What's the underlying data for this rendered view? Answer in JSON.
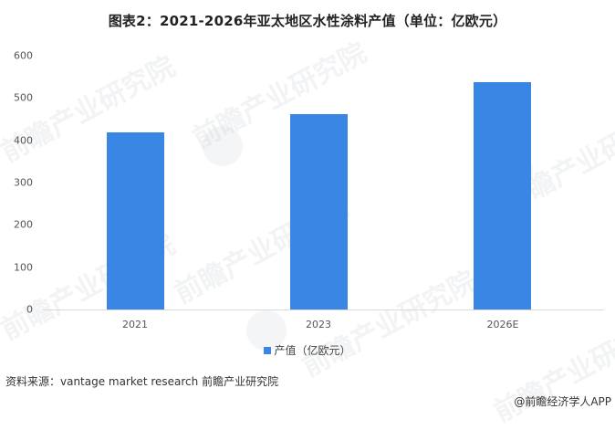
{
  "chart_data": {
    "type": "bar",
    "title": "图表2：2021-2026年亚太地区水性涂料产值（单位：亿欧元）",
    "categories": [
      "2021",
      "2023",
      "2026E"
    ],
    "series": [
      {
        "name": "产值（亿欧元）",
        "values": [
          419,
          462,
          538
        ],
        "color": "#3a86e4"
      }
    ],
    "xlabel": "",
    "ylabel": "",
    "ylim": [
      0,
      600
    ],
    "yticks": [
      "0",
      "100",
      "200",
      "300",
      "400",
      "500",
      "600"
    ],
    "grid": false,
    "legend_position": "bottom"
  },
  "footer": {
    "source": "资料来源：vantage market research  前瞻产业研究院",
    "credit": "@前瞻经济学人APP"
  },
  "watermark": {
    "text": "前瞻产业研究院"
  }
}
